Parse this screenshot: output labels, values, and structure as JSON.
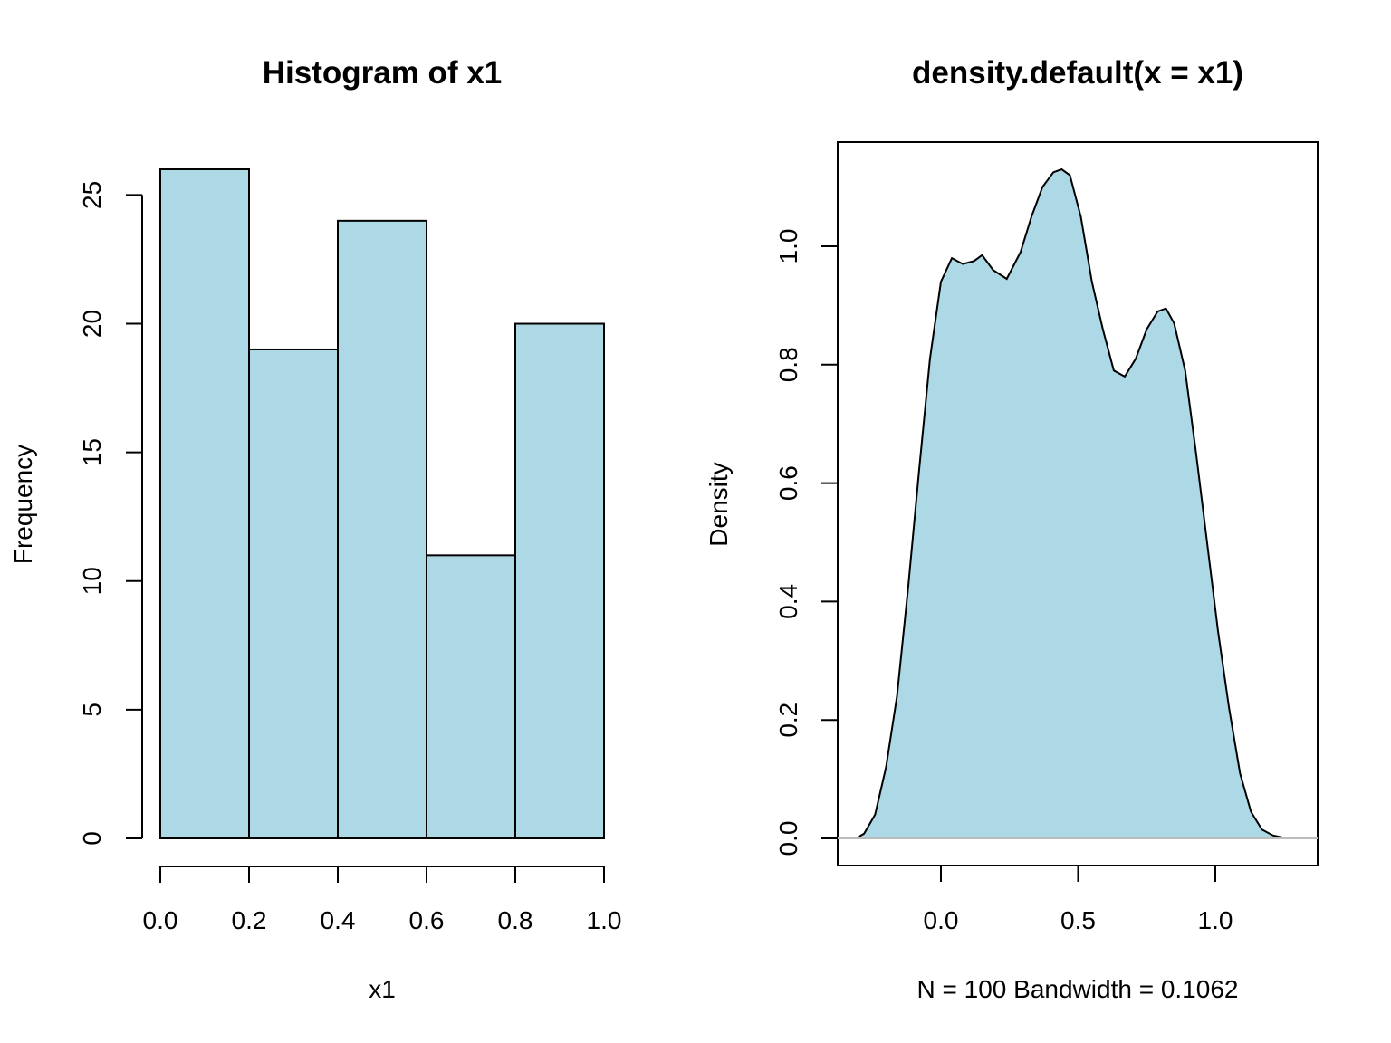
{
  "chart_data": [
    {
      "type": "bar",
      "title": "Histogram of x1",
      "xlabel": "x1",
      "ylabel": "Frequency",
      "bins": [
        {
          "start": 0.0,
          "end": 0.2,
          "value": 26
        },
        {
          "start": 0.2,
          "end": 0.4,
          "value": 19
        },
        {
          "start": 0.4,
          "end": 0.6,
          "value": 24
        },
        {
          "start": 0.6,
          "end": 0.8,
          "value": 11
        },
        {
          "start": 0.8,
          "end": 1.0,
          "value": 20
        }
      ],
      "xlim": [
        0.0,
        1.0
      ],
      "ylim": [
        0,
        26
      ],
      "x_ticks": [
        "0.0",
        "0.2",
        "0.4",
        "0.6",
        "0.8",
        "1.0"
      ],
      "y_ticks": [
        "0",
        "5",
        "10",
        "15",
        "20",
        "25"
      ],
      "fill_color": "#ADD8E6"
    },
    {
      "type": "area",
      "title": "density.default(x = x1)",
      "xlabel": "N = 100   Bandwidth = 0.1062",
      "ylabel": "Density",
      "xlim": [
        -0.3,
        1.3
      ],
      "ylim": [
        0,
        1.13
      ],
      "x_ticks": [
        "0.0",
        "0.5",
        "1.0"
      ],
      "y_ticks": [
        "0.0",
        "0.2",
        "0.4",
        "0.6",
        "0.8",
        "1.0"
      ],
      "fill_color": "#ADD8E6",
      "x": [
        -0.31,
        -0.28,
        -0.24,
        -0.2,
        -0.16,
        -0.12,
        -0.08,
        -0.04,
        0.0,
        0.04,
        0.08,
        0.12,
        0.15,
        0.19,
        0.24,
        0.29,
        0.33,
        0.37,
        0.41,
        0.44,
        0.47,
        0.51,
        0.55,
        0.59,
        0.63,
        0.67,
        0.71,
        0.75,
        0.79,
        0.82,
        0.85,
        0.89,
        0.93,
        0.97,
        1.01,
        1.05,
        1.09,
        1.13,
        1.17,
        1.21,
        1.25,
        1.28,
        1.31
      ],
      "y": [
        0.0,
        0.008,
        0.04,
        0.12,
        0.24,
        0.42,
        0.62,
        0.81,
        0.94,
        0.98,
        0.97,
        0.975,
        0.985,
        0.96,
        0.945,
        0.99,
        1.05,
        1.1,
        1.125,
        1.13,
        1.12,
        1.05,
        0.94,
        0.86,
        0.79,
        0.78,
        0.81,
        0.86,
        0.89,
        0.895,
        0.87,
        0.79,
        0.65,
        0.5,
        0.35,
        0.22,
        0.11,
        0.045,
        0.015,
        0.005,
        0.001,
        0.0,
        0.0
      ]
    }
  ]
}
